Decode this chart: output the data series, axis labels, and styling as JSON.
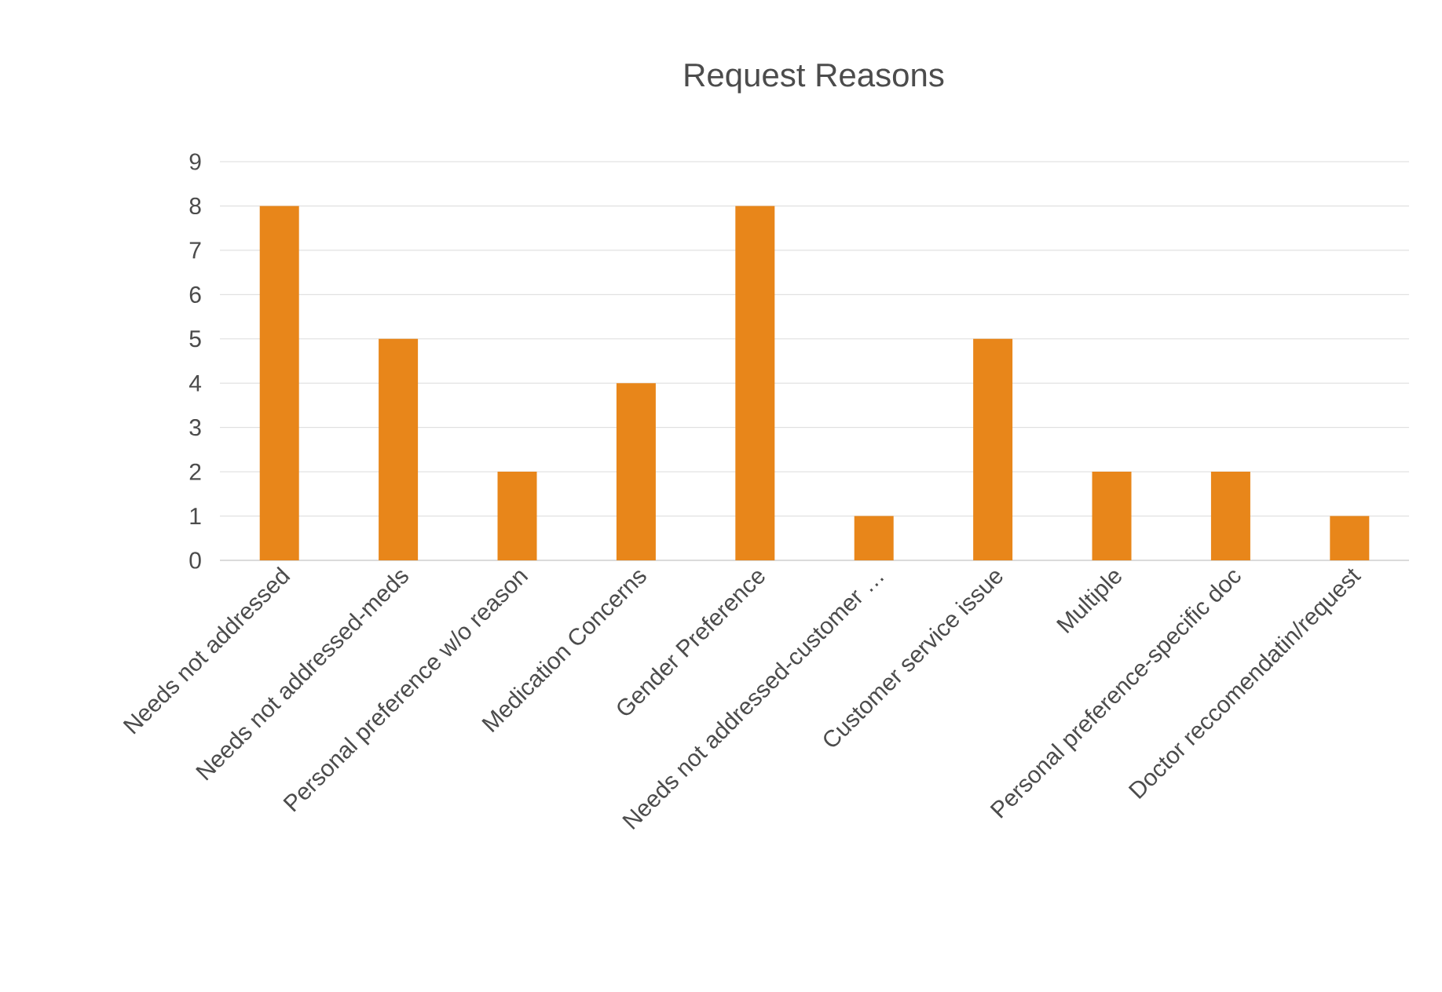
{
  "chart_data": {
    "type": "bar",
    "title": "Request Reasons",
    "categories": [
      "Needs not addressed",
      "Needs not addressed-meds",
      "Personal preference w/o reason",
      "Medication Concerns",
      "Gender Preference",
      "Needs not addressed-customer …",
      "Customer service issue",
      "Multiple",
      "Personal preference-specific doc",
      "Doctor reccomendatin/request"
    ],
    "values": [
      8,
      5,
      2,
      4,
      8,
      1,
      5,
      2,
      2,
      1
    ],
    "color": "#e8861a",
    "ylim": [
      0,
      9
    ],
    "yticks": [
      0,
      1,
      2,
      3,
      4,
      5,
      6,
      7,
      8,
      9
    ],
    "grid": "y"
  }
}
